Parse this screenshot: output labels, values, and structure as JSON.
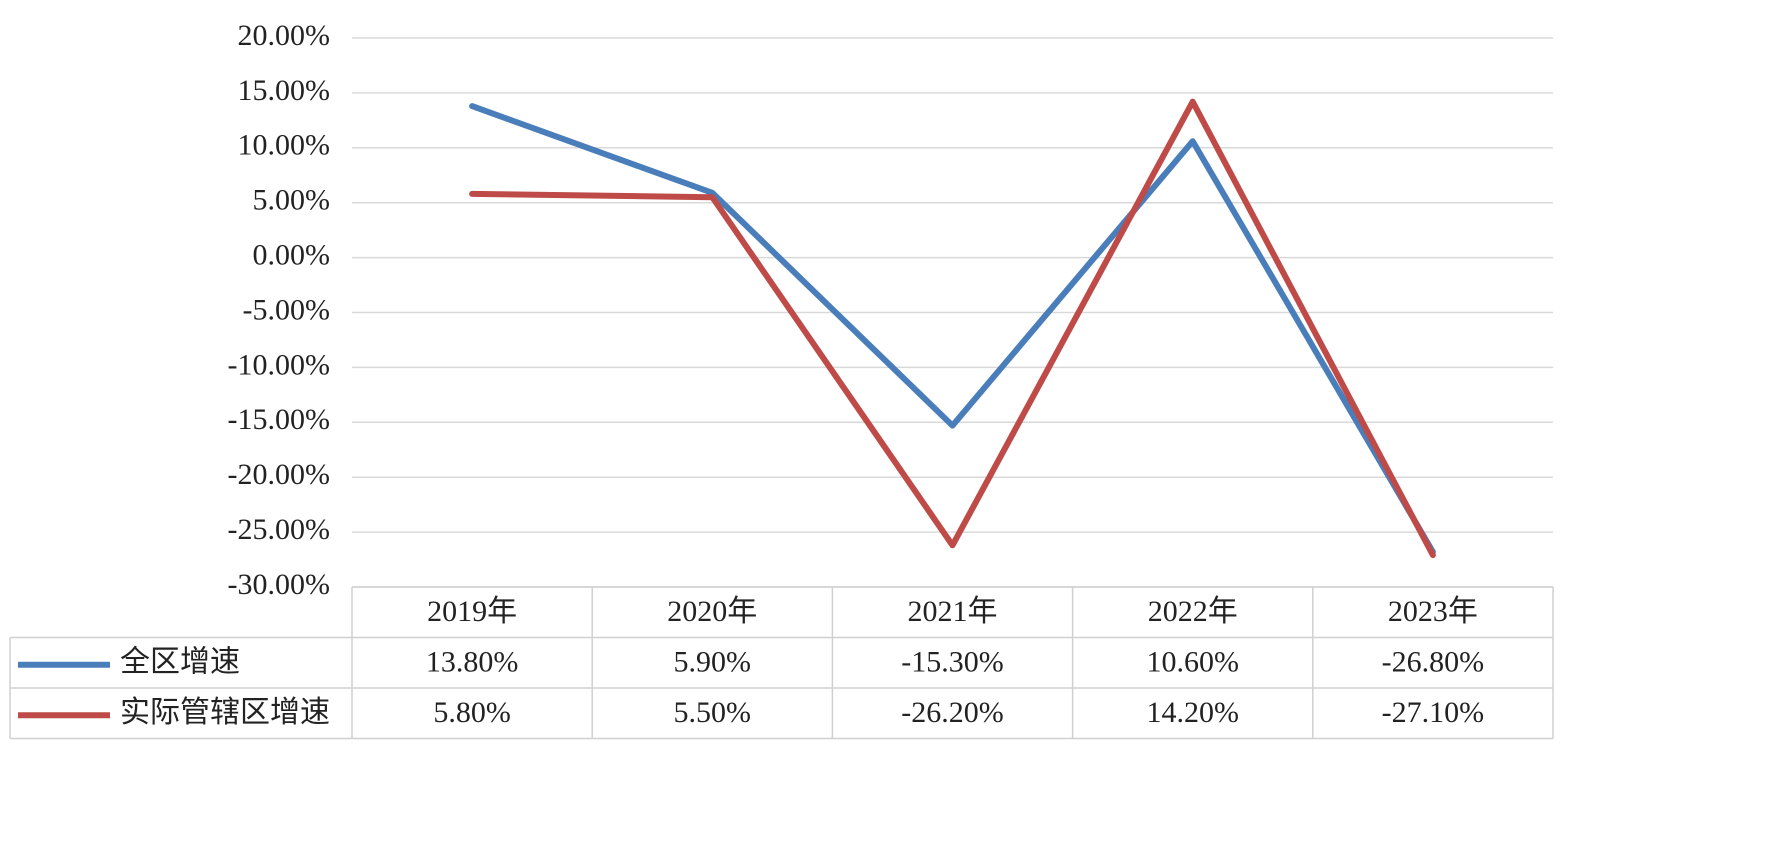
{
  "chart_data": {
    "type": "line",
    "categories": [
      "2019年",
      "2020年",
      "2021年",
      "2022年",
      "2023年"
    ],
    "series": [
      {
        "name": "全区增速",
        "color": "#4a7ebb",
        "values": [
          13.8,
          5.9,
          -15.3,
          10.6,
          -26.8
        ],
        "value_labels": [
          "13.80%",
          "5.90%",
          "-15.30%",
          "10.60%",
          "-26.80%"
        ]
      },
      {
        "name": "实际管辖区增速",
        "color": "#be4b48",
        "values": [
          5.8,
          5.5,
          -26.2,
          14.2,
          -27.1
        ],
        "value_labels": [
          "5.80%",
          "5.50%",
          "-26.20%",
          "14.20%",
          "-27.10%"
        ]
      }
    ],
    "ylim": [
      -30,
      20
    ],
    "yticks": [
      {
        "value": -30,
        "label": "-30.00%"
      },
      {
        "value": -25,
        "label": "-25.00%"
      },
      {
        "value": -20,
        "label": "-20.00%"
      },
      {
        "value": -15,
        "label": "-15.00%"
      },
      {
        "value": -10,
        "label": "-10.00%"
      },
      {
        "value": -5,
        "label": "-5.00%"
      },
      {
        "value": 0,
        "label": "0.00%"
      },
      {
        "value": 5,
        "label": "5.00%"
      },
      {
        "value": 10,
        "label": "10.00%"
      },
      {
        "value": 15,
        "label": "15.00%"
      },
      {
        "value": 20,
        "label": "20.00%"
      }
    ],
    "grid": true
  }
}
